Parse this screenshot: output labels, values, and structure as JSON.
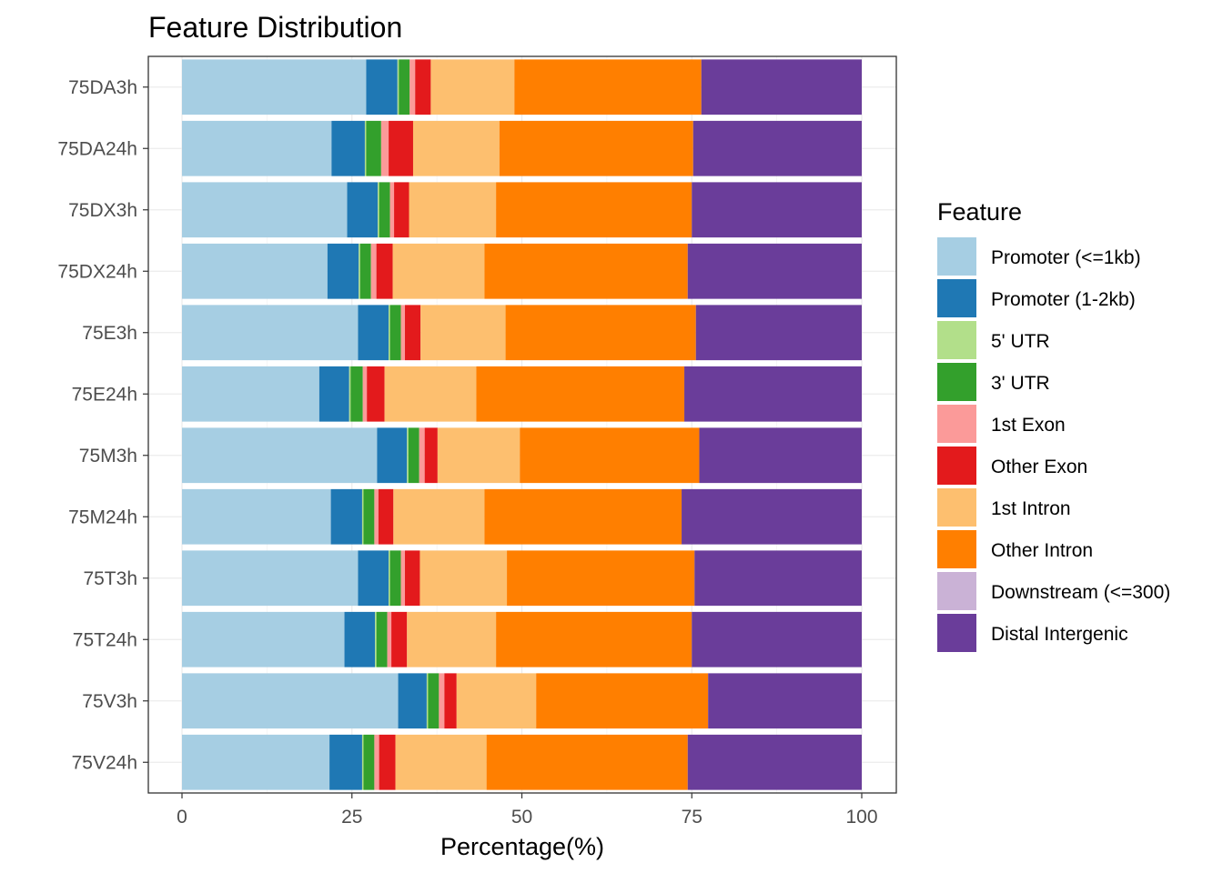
{
  "chart_data": {
    "type": "bar",
    "orientation": "horizontal",
    "stacked": true,
    "title": "Feature Distribution",
    "xlabel": "Percentage(%)",
    "ylabel": "",
    "xlim": [
      0,
      100
    ],
    "xticks": [
      0,
      25,
      50,
      75,
      100
    ],
    "grid": true,
    "legend_title": "Feature",
    "legend_position": "right",
    "categories": [
      "75DA3h",
      "75DA24h",
      "75DX3h",
      "75DX24h",
      "75E3h",
      "75E24h",
      "75M3h",
      "75M24h",
      "75T3h",
      "75T24h",
      "75V3h",
      "75V24h"
    ],
    "series": [
      {
        "name": "Promoter (<=1kb)",
        "color": "#A6CEE3",
        "values": [
          27.1,
          22.0,
          24.3,
          21.4,
          25.9,
          20.2,
          28.7,
          21.9,
          25.9,
          23.9,
          31.8,
          21.7
        ]
      },
      {
        "name": "Promoter (1-2kb)",
        "color": "#1F78B4",
        "values": [
          4.6,
          4.9,
          4.5,
          4.6,
          4.5,
          4.4,
          4.4,
          4.6,
          4.5,
          4.5,
          4.2,
          4.8
        ]
      },
      {
        "name": "5' UTR",
        "color": "#B2DF8A",
        "values": [
          0.2,
          0.2,
          0.2,
          0.2,
          0.2,
          0.2,
          0.2,
          0.2,
          0.2,
          0.2,
          0.2,
          0.2
        ]
      },
      {
        "name": "3' UTR",
        "color": "#33A02C",
        "values": [
          1.6,
          2.2,
          1.6,
          1.6,
          1.6,
          1.8,
          1.6,
          1.6,
          1.6,
          1.6,
          1.6,
          1.6
        ]
      },
      {
        "name": "1st Exon",
        "color": "#FB9A99",
        "values": [
          0.8,
          1.1,
          0.6,
          0.8,
          0.6,
          0.6,
          0.8,
          0.6,
          0.6,
          0.6,
          0.8,
          0.7
        ]
      },
      {
        "name": "Other Exon",
        "color": "#E31A1C",
        "values": [
          2.3,
          3.6,
          2.2,
          2.4,
          2.3,
          2.6,
          1.9,
          2.2,
          2.2,
          2.3,
          1.8,
          2.4
        ]
      },
      {
        "name": "1st Intron",
        "color": "#FDBF6F",
        "values": [
          12.3,
          12.7,
          12.8,
          13.5,
          12.5,
          13.5,
          12.1,
          13.4,
          12.8,
          13.1,
          11.7,
          13.4
        ]
      },
      {
        "name": "Other Intron",
        "color": "#FF7F00",
        "values": [
          27.5,
          28.5,
          28.8,
          29.9,
          28.0,
          30.6,
          26.4,
          29.0,
          27.6,
          28.8,
          25.3,
          29.6
        ]
      },
      {
        "name": "Downstream (<=300)",
        "color": "#CAB2D6",
        "values": [
          0.0,
          0.0,
          0.0,
          0.0,
          0.0,
          0.0,
          0.0,
          0.0,
          0.0,
          0.0,
          0.0,
          0.0
        ]
      },
      {
        "name": "Distal Intergenic",
        "color": "#6A3D9A",
        "values": [
          23.6,
          24.8,
          25.0,
          25.6,
          24.4,
          26.1,
          23.9,
          26.5,
          24.6,
          25.0,
          22.6,
          25.6
        ]
      }
    ]
  }
}
